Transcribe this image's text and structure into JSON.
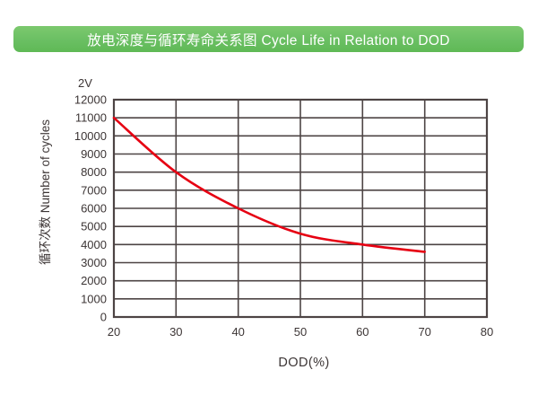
{
  "banner": {
    "title": "放电深度与循环寿命关系图 Cycle Life in Relation to DOD",
    "bg_color": "#6abf63",
    "text_color": "#ffffff"
  },
  "chart_data": {
    "type": "line",
    "title": "放电深度与循环寿命关系图 Cycle Life in Relation to DOD",
    "series_label": "2V",
    "series": [
      {
        "name": "2V",
        "x": [
          20,
          30,
          40,
          50,
          60,
          70
        ],
        "y": [
          11000,
          8000,
          6000,
          4600,
          4000,
          3600
        ],
        "color": "#e60012"
      }
    ],
    "xlabel": "DOD(%)",
    "ylabel": "循环次数 Number of cycles",
    "xlim": [
      20,
      80
    ],
    "ylim": [
      0,
      12000
    ],
    "x_ticks": [
      20,
      30,
      40,
      50,
      60,
      70,
      80
    ],
    "y_ticks": [
      0,
      1000,
      2000,
      3000,
      4000,
      5000,
      6000,
      7000,
      8000,
      9000,
      10000,
      11000,
      12000
    ],
    "grid": true,
    "grid_color": "#4d4444",
    "text_color": "#3c3535",
    "legend_position": "none"
  }
}
